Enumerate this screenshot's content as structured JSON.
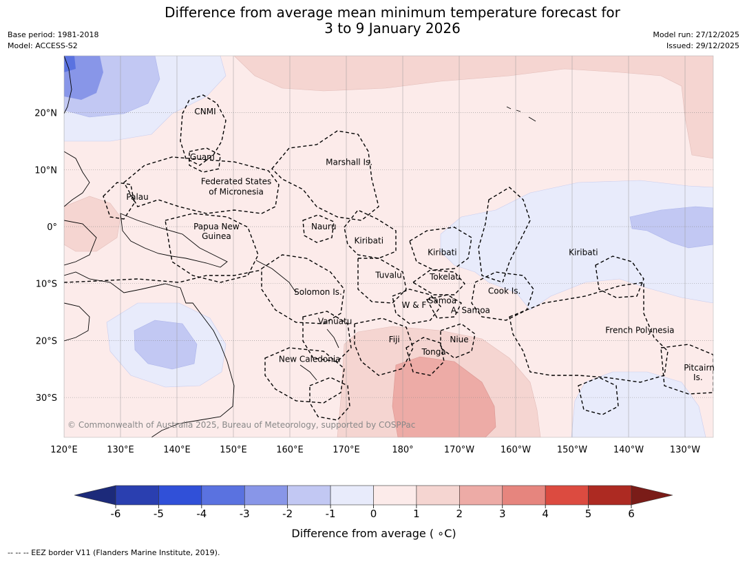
{
  "title": {
    "line1": "Difference from average mean minimum temperature forecast for",
    "line2": "3 to 9 January 2026"
  },
  "meta_left": {
    "base_period": "Base period: 1981-2018",
    "model": "Model: ACCESS-S2"
  },
  "meta_right": {
    "model_run": "Model run: 27/12/2025",
    "issued": "Issued: 29/12/2025"
  },
  "map": {
    "lon_range": [
      120,
      235
    ],
    "lat_range": [
      -37,
      30
    ],
    "lat_ticks": [
      {
        "value": 20,
        "label": "20°N"
      },
      {
        "value": 10,
        "label": "10°N"
      },
      {
        "value": 0,
        "label": "0°"
      },
      {
        "value": -10,
        "label": "10°S"
      },
      {
        "value": -20,
        "label": "20°S"
      },
      {
        "value": -30,
        "label": "30°S"
      }
    ],
    "lon_ticks": [
      {
        "value": 120,
        "label": "120°E"
      },
      {
        "value": 130,
        "label": "130°E"
      },
      {
        "value": 140,
        "label": "140°E"
      },
      {
        "value": 150,
        "label": "150°E"
      },
      {
        "value": 160,
        "label": "160°E"
      },
      {
        "value": 170,
        "label": "170°E"
      },
      {
        "value": 180,
        "label": "180°"
      },
      {
        "value": 190,
        "label": "170°W"
      },
      {
        "value": 200,
        "label": "160°W"
      },
      {
        "value": 210,
        "label": "150°W"
      },
      {
        "value": 220,
        "label": "140°W"
      },
      {
        "value": 230,
        "label": "130°W"
      }
    ],
    "regions": [
      {
        "label": "CNMI",
        "lon": 145.0,
        "lat": 20.2
      },
      {
        "label": "Guam",
        "lon": 144.5,
        "lat": 12.2
      },
      {
        "label": "Marshall Is.",
        "lon": 170.5,
        "lat": 11.3
      },
      {
        "label": "Federated States",
        "lon": 150.5,
        "lat": 7.9
      },
      {
        "label": "of Micronesia",
        "lon": 150.5,
        "lat": 6.1
      },
      {
        "label": "Palau",
        "lon": 133.0,
        "lat": 5.2
      },
      {
        "label": "Papua New",
        "lon": 147.0,
        "lat": 0.0
      },
      {
        "label": "Guinea",
        "lon": 147.0,
        "lat": -1.7
      },
      {
        "label": "Nauru",
        "lon": 166.0,
        "lat": 0.0
      },
      {
        "label": "Kiribati",
        "lon": 174.0,
        "lat": -2.5
      },
      {
        "label": "Kiribati",
        "lon": 187.0,
        "lat": -4.5
      },
      {
        "label": "Kiribati",
        "lon": 212.0,
        "lat": -4.5
      },
      {
        "label": "Tuvalu",
        "lon": 177.5,
        "lat": -8.5
      },
      {
        "label": "Tokelau",
        "lon": 187.5,
        "lat": -8.8
      },
      {
        "label": "Cook Is.",
        "lon": 198.0,
        "lat": -11.3
      },
      {
        "label": "Solomon Is.",
        "lon": 165.0,
        "lat": -11.5
      },
      {
        "label": "W & F",
        "lon": 182.0,
        "lat": -13.8
      },
      {
        "label": "Samoa",
        "lon": 187.0,
        "lat": -13.0
      },
      {
        "label": "A. Samoa",
        "lon": 192.0,
        "lat": -14.7
      },
      {
        "label": "Vanuatu",
        "lon": 168.0,
        "lat": -16.6
      },
      {
        "label": "Fiji",
        "lon": 178.5,
        "lat": -19.8
      },
      {
        "label": "Niue",
        "lon": 190.0,
        "lat": -19.8
      },
      {
        "label": "Tonga",
        "lon": 185.5,
        "lat": -22.0
      },
      {
        "label": "French Polynesia",
        "lon": 222.0,
        "lat": -18.2
      },
      {
        "label": "New Caledonia",
        "lon": 163.5,
        "lat": -23.3
      },
      {
        "label": "Pitcairn",
        "lon": 232.5,
        "lat": -24.8
      },
      {
        "label": "Is.",
        "lon": 232.3,
        "lat": -26.5
      }
    ],
    "copyright": "© Commonwealth of Australia 2025, Bureau of Meteorology, supported by COSPPac"
  },
  "colorbar": {
    "label": "Difference from average ( ∘C)",
    "ticks": [
      "-6",
      "-5",
      "-4",
      "-3",
      "-2",
      "-1",
      "0",
      "1",
      "2",
      "3",
      "4",
      "5",
      "6"
    ],
    "under_color": "#1c2a7a",
    "over_color": "#7a1c18",
    "bins": [
      {
        "from": -6,
        "to": -5,
        "color": "#2a3fb0"
      },
      {
        "from": -5,
        "to": -4,
        "color": "#3050d8"
      },
      {
        "from": -4,
        "to": -3,
        "color": "#5a72e0"
      },
      {
        "from": -3,
        "to": -2,
        "color": "#8896e8"
      },
      {
        "from": -2,
        "to": -1,
        "color": "#c2c8f3"
      },
      {
        "from": -1,
        "to": 0,
        "color": "#e8ebfb"
      },
      {
        "from": 0,
        "to": 1,
        "color": "#fcebea"
      },
      {
        "from": 1,
        "to": 2,
        "color": "#f5d5d1"
      },
      {
        "from": 2,
        "to": 3,
        "color": "#edaba6"
      },
      {
        "from": 3,
        "to": 4,
        "color": "#e6857e"
      },
      {
        "from": 4,
        "to": 5,
        "color": "#dc4b40"
      },
      {
        "from": 5,
        "to": 6,
        "color": "#ad2a22"
      }
    ]
  },
  "footer": "-- -- -- EEZ border V11 (Flanders Marine Institute, 2019)."
}
